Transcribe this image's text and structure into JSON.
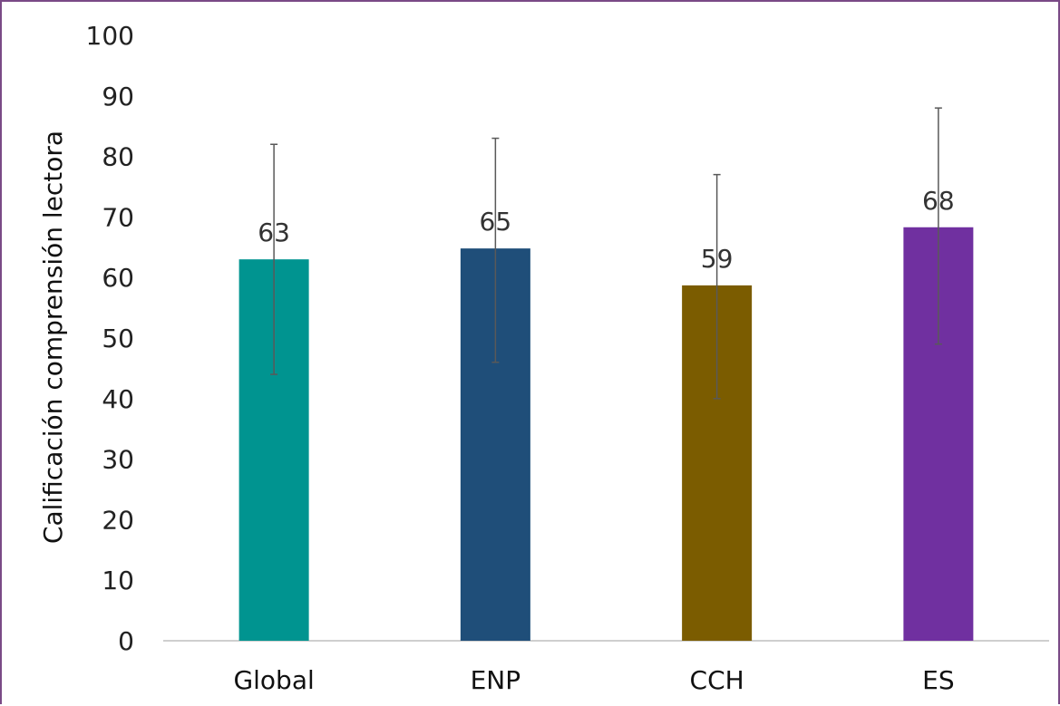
{
  "chart_data": {
    "type": "bar",
    "title": "",
    "xlabel": "",
    "ylabel": "Calificación comprensión lectora",
    "ylim": [
      0,
      100
    ],
    "yticks": [
      0,
      10,
      20,
      30,
      40,
      50,
      60,
      70,
      80,
      90,
      100
    ],
    "grid": false,
    "categories": [
      "Global",
      "ENP",
      "CCH",
      "ES"
    ],
    "values": [
      63,
      65,
      59,
      68
    ],
    "value_labels": [
      "63",
      "65",
      "59",
      "68"
    ],
    "error_bars": [
      {
        "low": 44,
        "high": 82
      },
      {
        "low": 46,
        "high": 83
      },
      {
        "low": 40,
        "high": 77
      },
      {
        "low": 49,
        "high": 88
      }
    ],
    "bar_values_exact": [
      63,
      64.8,
      58.7,
      68.3
    ],
    "colors": [
      "#009490",
      "#1f4e79",
      "#7b5c00",
      "#7030a0"
    ],
    "error_bar_color": "#595959",
    "axis_color": "#bfbfbf",
    "frame_color": "#7a4a86"
  }
}
